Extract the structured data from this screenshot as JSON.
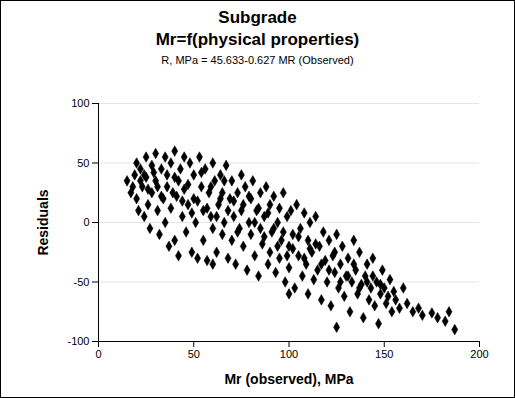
{
  "chart_data": {
    "type": "scatter",
    "title": [
      "Subgrade",
      "Mr=f(physical properties)"
    ],
    "subtitle": "R, MPa = 45.633-0.627 MR (Observed)",
    "x_label": "Mr (observed), MPa",
    "y_label": "Residuals",
    "color": "#000000",
    "marker": "diamond",
    "grid": true,
    "xlim": [
      0,
      200
    ],
    "xticks": [
      0,
      50,
      100,
      150,
      200
    ],
    "ylim": [
      -100,
      100
    ],
    "yticks": [
      -100,
      -50,
      0,
      50,
      100
    ],
    "x": [
      15,
      17,
      18,
      19,
      20,
      20,
      21,
      22,
      23,
      24,
      25,
      25,
      26,
      27,
      28,
      28,
      30,
      30,
      31,
      32,
      33,
      34,
      35,
      35,
      36,
      37,
      38,
      38,
      40,
      40,
      40,
      41,
      42,
      43,
      44,
      45,
      45,
      46,
      47,
      48,
      49,
      50,
      50,
      51,
      52,
      53,
      54,
      55,
      55,
      56,
      57,
      58,
      59,
      60,
      60,
      61,
      62,
      63,
      64,
      65,
      65,
      66,
      67,
      68,
      69,
      70,
      70,
      71,
      72,
      73,
      74,
      75,
      75,
      76,
      77,
      78,
      79,
      80,
      80,
      81,
      82,
      83,
      84,
      85,
      85,
      86,
      87,
      88,
      89,
      90,
      90,
      91,
      92,
      93,
      94,
      95,
      95,
      96,
      97,
      98,
      99,
      100,
      100,
      101,
      102,
      103,
      104,
      105,
      106,
      107,
      108,
      109,
      110,
      110,
      111,
      112,
      113,
      114,
      115,
      116,
      117,
      118,
      119,
      120,
      121,
      122,
      123,
      124,
      125,
      126,
      127,
      128,
      129,
      130,
      131,
      132,
      133,
      134,
      135,
      136,
      137,
      138,
      139,
      140,
      141,
      142,
      143,
      144,
      145,
      146,
      147,
      148,
      149,
      150,
      151,
      152,
      153,
      154,
      155,
      156,
      158,
      160,
      162,
      165,
      168,
      170,
      175,
      178,
      182,
      187,
      184,
      125,
      100,
      60,
      22,
      24,
      26,
      29,
      31,
      33,
      36,
      39,
      42,
      44,
      47,
      49,
      52,
      54,
      57,
      59,
      62,
      64,
      66,
      68,
      71,
      73,
      76,
      79,
      82,
      84,
      87,
      89,
      92,
      94,
      97,
      99,
      102,
      105,
      108,
      111,
      114,
      117,
      121,
      124,
      127,
      131,
      134,
      137,
      141,
      144,
      148
    ],
    "values": [
      35,
      25,
      30,
      40,
      50,
      20,
      10,
      45,
      30,
      5,
      55,
      38,
      15,
      -5,
      48,
      25,
      58,
      35,
      10,
      -10,
      45,
      20,
      55,
      0,
      30,
      -20,
      50,
      12,
      60,
      38,
      -15,
      22,
      -28,
      45,
      5,
      55,
      28,
      -8,
      15,
      50,
      -25,
      40,
      20,
      0,
      -30,
      55,
      30,
      10,
      -15,
      45,
      -32,
      25,
      5,
      50,
      -5,
      35,
      -25,
      15,
      40,
      -10,
      25,
      0,
      48,
      -30,
      20,
      35,
      -15,
      5,
      -35,
      25,
      -5,
      40,
      10,
      -20,
      30,
      -40,
      0,
      20,
      -10,
      35,
      -28,
      10,
      -45,
      25,
      -5,
      -18,
      5,
      30,
      -35,
      15,
      -25,
      -8,
      22,
      -42,
      0,
      12,
      -30,
      -15,
      25,
      -50,
      5,
      -20,
      -38,
      10,
      -10,
      -55,
      15,
      -28,
      -5,
      -45,
      8,
      -35,
      -15,
      -60,
      0,
      -25,
      -48,
      5,
      -40,
      -20,
      -65,
      -8,
      -32,
      -50,
      -15,
      -70,
      -28,
      -42,
      -10,
      -55,
      -35,
      -20,
      -62,
      -45,
      -30,
      -75,
      -50,
      -15,
      -40,
      -60,
      -25,
      -52,
      -80,
      -45,
      -35,
      -65,
      -55,
      -30,
      -70,
      -50,
      -85,
      -60,
      -40,
      -55,
      -68,
      -62,
      -48,
      -75,
      -58,
      -65,
      -72,
      -55,
      -68,
      -75,
      -72,
      -78,
      -76,
      -80,
      -83,
      -90,
      -75,
      -88,
      -60,
      -35,
      35,
      40,
      28,
      42,
      30,
      22,
      40,
      25,
      35,
      18,
      32,
      8,
      18,
      42,
      12,
      30,
      5,
      20,
      35,
      10,
      18,
      -8,
      15,
      22,
      0,
      12,
      -12,
      8,
      -5,
      -20,
      -8,
      -28,
      -22,
      -12,
      -30,
      -22,
      -18,
      -35,
      -40,
      -25,
      -50,
      -45,
      -35,
      -55,
      -50,
      -45,
      -52
    ]
  }
}
